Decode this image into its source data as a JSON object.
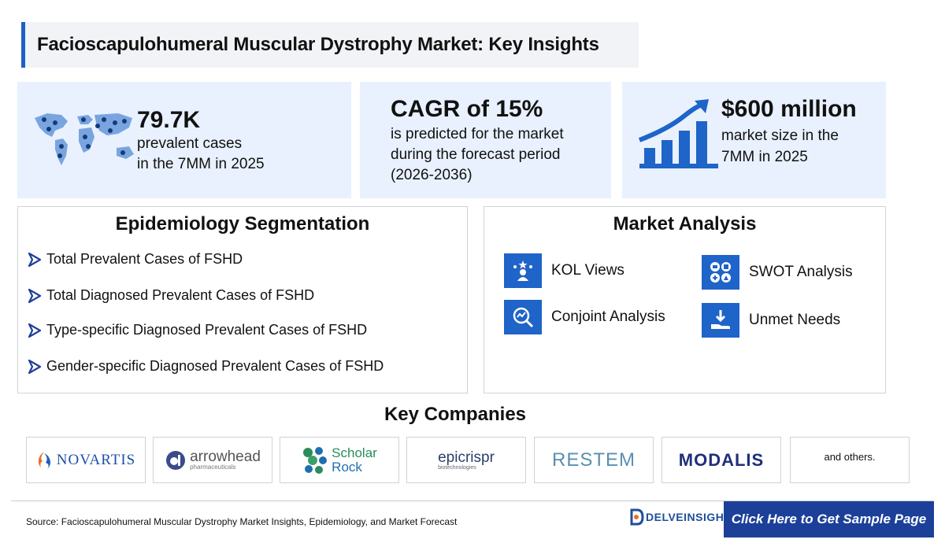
{
  "title": "Facioscapulohumeral Muscular Dystrophy Market: Key Insights",
  "stats": {
    "prevalent": {
      "value": "79.7K",
      "line1": "prevalent cases",
      "line2": "in the 7MM in 2025",
      "icon": "world-map-people-icon"
    },
    "cagr": {
      "value": "CAGR of 15%",
      "line1": "is predicted for the market",
      "line2": "during the forecast period",
      "line3": "(2026-2036)"
    },
    "market": {
      "value": "$600 million",
      "line1": "market size in the",
      "line2": "7MM in 2025",
      "icon": "growth-bar-chart-icon"
    }
  },
  "epidemiology": {
    "title": "Epidemiology Segmentation",
    "items": [
      "Total Prevalent Cases of FSHD",
      "Total Diagnosed Prevalent Cases of FSHD",
      "Type-specific Diagnosed Prevalent Cases of FSHD",
      "Gender-specific Diagnosed Prevalent Cases of FSHD"
    ]
  },
  "market_analysis": {
    "title": "Market Analysis",
    "items": [
      {
        "label": "KOL Views",
        "icon": "kol-icon"
      },
      {
        "label": "SWOT Analysis",
        "icon": "swot-icon"
      },
      {
        "label": "Conjoint Analysis",
        "icon": "conjoint-icon"
      },
      {
        "label": "Unmet Needs",
        "icon": "unmet-needs-icon"
      }
    ]
  },
  "companies": {
    "title": "Key Companies",
    "logos": [
      {
        "name": "NOVARTIS"
      },
      {
        "name": "arrowhead",
        "tagline": "pharmaceuticals"
      },
      {
        "name": "Scholar",
        "name2": "Rock"
      },
      {
        "name": "epicrispr",
        "tagline": "biotechnologies"
      },
      {
        "name": "RESTEM"
      },
      {
        "name": "MODALIS"
      }
    ],
    "others": "and others."
  },
  "footer": {
    "source": "Source: Facioscapulohumeral Muscular Dystrophy Market Insights, Epidemiology, and Market Forecast",
    "brand": "DELVEINSIGHT",
    "cta": "Click Here to Get Sample Page"
  },
  "colors": {
    "accent": "#1f64c8",
    "card_bg": "#e8f1fd",
    "cta_bg": "#1c3f99"
  }
}
